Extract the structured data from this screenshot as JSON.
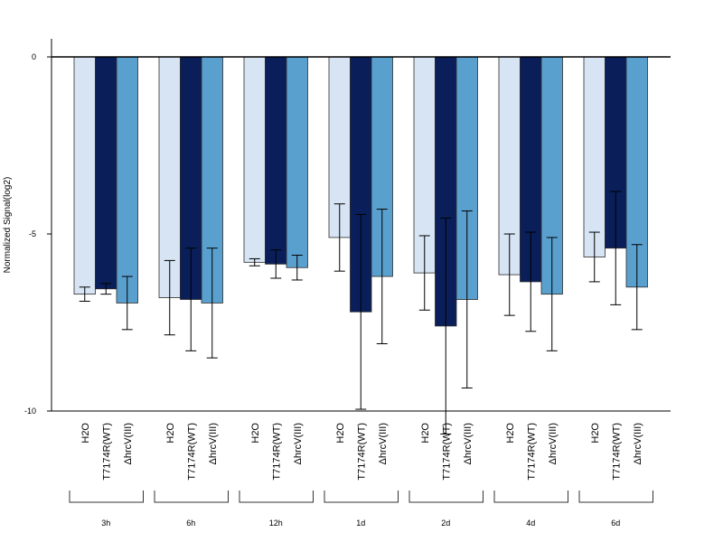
{
  "chart_data": {
    "type": "bar",
    "title": "",
    "xlabel": "",
    "ylabel": "Normalized Signal(log2)",
    "ylim": [
      -10,
      0.5
    ],
    "yticks": [
      0,
      -5,
      -10
    ],
    "ytick_labels": [
      "0",
      "-5",
      "-10"
    ],
    "groups": [
      "3h",
      "6h",
      "12h",
      "1d",
      "2d",
      "4d",
      "6d"
    ],
    "bar_labels": [
      "H2O",
      "T7174R(WT)",
      "ΔhrcV(III)"
    ],
    "colors": [
      "#d6e4f3",
      "#0a1f5a",
      "#5aa0cf"
    ],
    "grid": false,
    "legend": "none",
    "series": [
      {
        "values": [
          -6.7,
          -6.8,
          -5.8,
          -5.1,
          -6.1,
          -6.15,
          -5.65
        ],
        "error": [
          0.2,
          1.05,
          0.1,
          0.95,
          1.05,
          1.15,
          0.7
        ]
      },
      {
        "values": [
          -6.55,
          -6.85,
          -5.85,
          -7.2,
          -7.6,
          -6.35,
          -5.4
        ],
        "error": [
          0.15,
          1.45,
          0.4,
          2.75,
          3.05,
          1.4,
          1.6
        ]
      },
      {
        "values": [
          -6.95,
          -6.95,
          -5.95,
          -6.2,
          -6.85,
          -6.7,
          -6.5
        ],
        "error": [
          0.75,
          1.55,
          0.35,
          1.9,
          2.5,
          1.6,
          1.2
        ]
      }
    ]
  }
}
